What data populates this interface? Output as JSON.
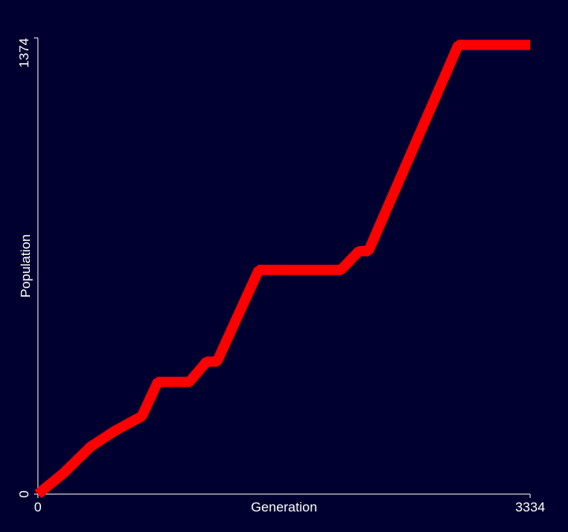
{
  "chart_data": {
    "type": "line",
    "x_label": "Generation",
    "y_label": "Population",
    "x": [
      0,
      171,
      358,
      520,
      705,
      812,
      1026,
      1143,
      1213,
      1496,
      2052,
      2175,
      2239,
      2848,
      3334
    ],
    "series": [
      {
        "name": "Population",
        "color": "#ff0000",
        "values": [
          0,
          62,
          143,
          190,
          235,
          338,
          338,
          399,
          399,
          675,
          675,
          732,
          732,
          1353,
          1353
        ]
      }
    ],
    "xlim": [
      0,
      3334
    ],
    "ylim": [
      0,
      1374
    ],
    "xticks": [
      0,
      3334
    ],
    "yticks": [
      0,
      1374
    ]
  }
}
